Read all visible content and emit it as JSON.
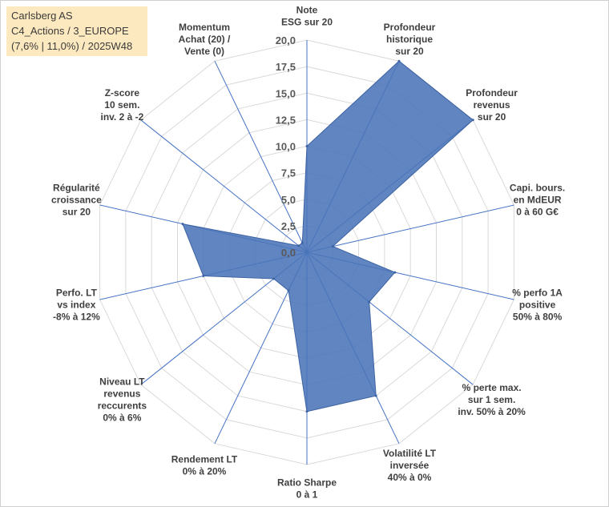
{
  "header": {
    "line1": "Carlsberg AS",
    "line2": "C4_Actions / 3_EUROPE",
    "line3": "(7,6% | 11,0%) / 2025W48"
  },
  "chart_data": {
    "type": "radar",
    "title": "Carlsberg AS",
    "rmin": 0,
    "rmax": 20,
    "ticks": [
      "0,0",
      "2,5",
      "5,0",
      "7,5",
      "10,0",
      "12,5",
      "15,0",
      "17,5",
      "20,0"
    ],
    "tick_values": [
      0,
      2.5,
      5,
      7.5,
      10,
      12.5,
      15,
      17.5,
      20
    ],
    "axes": [
      {
        "label": [
          "Note",
          "ESG sur 20"
        ],
        "value": 10
      },
      {
        "label": [
          "Profondeur",
          "historique",
          "sur 20"
        ],
        "value": 20
      },
      {
        "label": [
          "Profondeur",
          "revenus",
          "sur 20"
        ],
        "value": 20
      },
      {
        "label": [
          "Capi. bours.",
          "en MdEUR",
          "0 à 60 G€"
        ],
        "value": 2.5
      },
      {
        "label": [
          "% perfo 1A",
          "positive",
          "50% à 80%"
        ],
        "value": 8.5
      },
      {
        "label": [
          "% perte max.",
          "sur 1 sem.",
          "inv. 50% à 20%"
        ],
        "value": 7.5
      },
      {
        "label": [
          "Volatilité LT",
          "inversée",
          "40% à 0%"
        ],
        "value": 15
      },
      {
        "label": [
          "Ratio Sharpe",
          "0 à 1"
        ],
        "value": 15
      },
      {
        "label": [
          "Rendement LT",
          "0% à 20%"
        ],
        "value": 4
      },
      {
        "label": [
          "Niveau LT",
          "revenus",
          "reccurents",
          "0% à 6%"
        ],
        "value": 4
      },
      {
        "label": [
          "Perfo. LT",
          "vs index",
          "-8% à 12%"
        ],
        "value": 10
      },
      {
        "label": [
          "Régularité",
          "croissance",
          "sur 20"
        ],
        "value": 12
      },
      {
        "label": [
          "Z-score",
          "10 sem.",
          "inv. 2 à -2"
        ],
        "value": 1
      },
      {
        "label": [
          "Momentum",
          "Achat (20) /",
          "Vente (0)"
        ],
        "value": 1
      }
    ],
    "series_color": "#4a74b8",
    "grid_color": "#d9d9d9",
    "spoke_color": "#4472c4"
  }
}
